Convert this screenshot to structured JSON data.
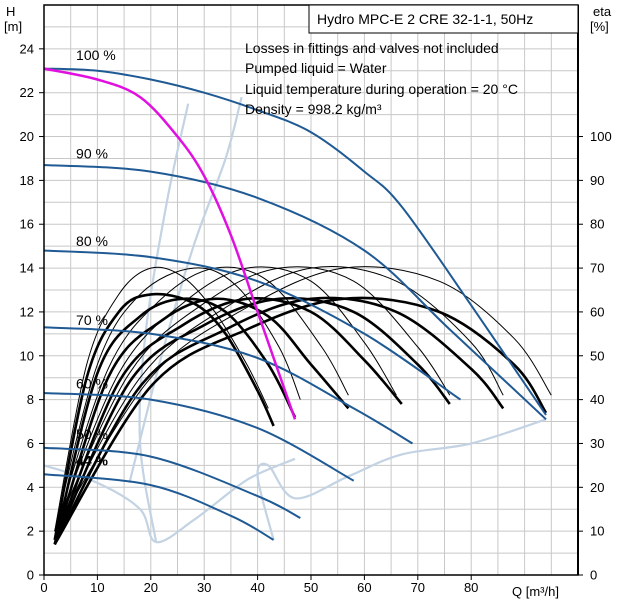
{
  "chart_data": {
    "type": "line",
    "title": "Hydro MPC-E 2 CRE 32-1-1, 50Hz",
    "notes": [
      "Losses in fittings and valves not included",
      "Pumped liquid = Water",
      "Liquid temperature during operation = 20 °C",
      "Density = 998.2 kg/m³"
    ],
    "x_axis": {
      "label": "Q [m³/h]",
      "range": [
        0,
        100
      ],
      "ticks": [
        0,
        10,
        20,
        30,
        40,
        50,
        60,
        70,
        80
      ]
    },
    "y_axis_left": {
      "label_top": "H",
      "label_unit": "[m]",
      "range": [
        0,
        26
      ],
      "ticks": [
        0,
        2,
        4,
        6,
        8,
        10,
        12,
        14,
        16,
        18,
        20,
        22,
        24
      ]
    },
    "y_axis_right": {
      "label_top": "eta",
      "label_unit": "[%]",
      "range": [
        0,
        130
      ],
      "ticks": [
        0,
        10,
        20,
        30,
        40,
        50,
        60,
        70,
        80,
        90,
        100
      ]
    },
    "grid": true,
    "speed_labels": [
      {
        "text": "100 %",
        "x": 6,
        "y": 23.5
      },
      {
        "text": "90 %",
        "x": 6,
        "y": 19.0
      },
      {
        "text": "80 %",
        "x": 6,
        "y": 15.0
      },
      {
        "text": "70 %",
        "x": 6,
        "y": 11.4
      },
      {
        "text": "60 %",
        "x": 6,
        "y": 8.5
      },
      {
        "text": "50 %",
        "x": 6,
        "y": 6.2
      },
      {
        "text": "44 %",
        "x": 6,
        "y": 5.0,
        "bold": true
      }
    ],
    "head_curves": [
      {
        "speed": 1.0,
        "x": [
          0,
          10,
          20,
          30,
          40,
          50,
          60,
          67,
          80,
          94
        ],
        "y": [
          23.1,
          23.0,
          22.6,
          22.0,
          21.2,
          20.2,
          18.4,
          16.8,
          12.3,
          7.3
        ]
      },
      {
        "speed": 0.9,
        "x": [
          0,
          20,
          40,
          60,
          76,
          94
        ],
        "y": [
          18.7,
          18.4,
          17.2,
          14.8,
          11.2,
          7.1
        ]
      },
      {
        "speed": 0.8,
        "x": [
          0,
          20,
          40,
          60,
          78
        ],
        "y": [
          14.8,
          14.5,
          13.4,
          11.0,
          8.0
        ]
      },
      {
        "speed": 0.7,
        "x": [
          0,
          20,
          40,
          58,
          69
        ],
        "y": [
          11.3,
          11.0,
          9.9,
          7.6,
          6.0
        ]
      },
      {
        "speed": 0.6,
        "x": [
          0,
          20,
          40,
          58
        ],
        "y": [
          8.3,
          8.0,
          6.7,
          4.3
        ]
      },
      {
        "speed": 0.5,
        "x": [
          0,
          20,
          40,
          48
        ],
        "y": [
          5.8,
          5.4,
          3.6,
          2.6
        ]
      },
      {
        "speed": 0.44,
        "x": [
          0,
          20,
          35,
          43
        ],
        "y": [
          4.6,
          4.1,
          2.7,
          1.6
        ]
      }
    ],
    "highlight_curve": {
      "color": "#e010e0",
      "x": [
        0,
        10,
        18,
        25,
        30,
        35,
        40,
        45,
        47
      ],
      "y": [
        23.1,
        22.6,
        21.8,
        20.0,
        18.2,
        15.5,
        12.0,
        8.5,
        7.1
      ]
    },
    "efficiency_curves_bold": [
      {
        "x": [
          2,
          8,
          14,
          20,
          28,
          34,
          40,
          43
        ],
        "y": [
          8,
          45,
          60,
          64,
          62,
          55,
          42,
          34
        ]
      },
      {
        "x": [
          2,
          10,
          18,
          26,
          34,
          42,
          47
        ],
        "y": [
          7,
          46,
          59,
          63,
          60,
          48,
          36
        ]
      },
      {
        "x": [
          2,
          12,
          22,
          32,
          42,
          50,
          57
        ],
        "y": [
          7,
          45,
          58,
          63,
          59,
          48,
          38
        ]
      },
      {
        "x": [
          2,
          14,
          26,
          38,
          50,
          60,
          67
        ],
        "y": [
          7,
          44,
          57,
          63,
          60,
          49,
          39
        ]
      },
      {
        "x": [
          2,
          16,
          30,
          44,
          58,
          70,
          76
        ],
        "y": [
          7,
          44,
          57,
          63,
          60,
          48,
          39
        ]
      },
      {
        "x": [
          2,
          18,
          34,
          50,
          66,
          80,
          86
        ],
        "y": [
          7,
          43,
          56,
          63,
          60,
          47,
          38
        ]
      },
      {
        "x": [
          2,
          20,
          38,
          56,
          74,
          88,
          94
        ],
        "y": [
          7,
          43,
          56,
          63,
          60,
          48,
          37
        ]
      }
    ],
    "efficiency_curves_thin": [
      {
        "x": [
          2,
          8,
          14,
          20,
          26,
          32,
          38,
          42
        ],
        "y": [
          10,
          48,
          64,
          70,
          68,
          60,
          48,
          38
        ]
      },
      {
        "x": [
          2,
          10,
          18,
          28,
          36,
          44,
          48
        ],
        "y": [
          10,
          48,
          64,
          70,
          66,
          52,
          40
        ]
      },
      {
        "x": [
          2,
          12,
          22,
          32,
          42,
          52,
          57
        ],
        "y": [
          10,
          47,
          63,
          70,
          67,
          52,
          41
        ]
      },
      {
        "x": [
          2,
          14,
          26,
          38,
          50,
          60,
          66
        ],
        "y": [
          10,
          46,
          62,
          70,
          67,
          53,
          41
        ]
      },
      {
        "x": [
          2,
          16,
          30,
          44,
          58,
          70,
          76
        ],
        "y": [
          10,
          46,
          62,
          70,
          67,
          52,
          41
        ]
      },
      {
        "x": [
          2,
          18,
          34,
          50,
          66,
          80,
          86
        ],
        "y": [
          10,
          45,
          61,
          70,
          67,
          53,
          41
        ]
      },
      {
        "x": [
          2,
          20,
          38,
          56,
          74,
          88,
          95
        ],
        "y": [
          10,
          45,
          61,
          70,
          67,
          54,
          41
        ]
      }
    ],
    "operating_limits": [
      {
        "x": [
          0,
          10,
          18,
          21,
          28,
          36,
          40,
          47
        ],
        "y": [
          5.0,
          4.2,
          3.0,
          1.5,
          2.5,
          4.0,
          4.6,
          5.3
        ]
      },
      {
        "x": [
          21,
          18,
          19,
          23,
          27
        ],
        "y": [
          1.5,
          6.0,
          11.0,
          17.0,
          21.5
        ]
      },
      {
        "x": [
          43,
          40,
          42,
          47,
          57,
          67,
          80,
          94
        ],
        "y": [
          1.6,
          4.5,
          5.0,
          3.5,
          4.5,
          5.5,
          6.0,
          7.1
        ]
      },
      {
        "x": [
          16,
          22,
          28,
          34,
          37
        ],
        "y": [
          4.2,
          10.0,
          15.0,
          19.0,
          21.8
        ]
      }
    ]
  }
}
